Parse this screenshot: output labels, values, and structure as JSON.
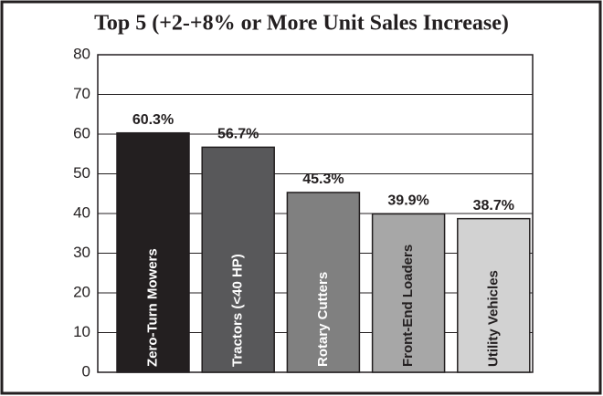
{
  "chart_data": {
    "type": "bar",
    "title": "Top 5 (+2-+8% or More Unit Sales Increase)",
    "categories": [
      "Zero-Turn Mowers",
      "Tractors (<40 HP)",
      "Rotary Cutters",
      "Front-End Loaders",
      "Utility Vehicles"
    ],
    "values": [
      60.3,
      56.7,
      45.3,
      39.9,
      38.7
    ],
    "value_labels": [
      "60.3%",
      "56.7%",
      "45.3%",
      "39.9%",
      "38.7%"
    ],
    "colors": [
      "#231f20",
      "#58585a",
      "#808080",
      "#a7a7a7",
      "#d2d2d2"
    ],
    "ylim": [
      0,
      80
    ],
    "yticks": [
      0,
      10,
      20,
      30,
      40,
      50,
      60,
      70,
      80
    ],
    "grid": true
  }
}
